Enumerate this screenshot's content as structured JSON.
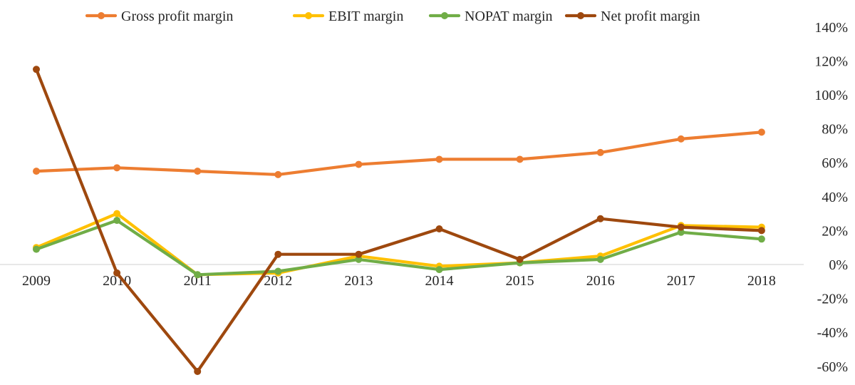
{
  "chart_data": {
    "type": "line",
    "title": "",
    "xlabel": "",
    "ylabel": "",
    "categories": [
      "2009",
      "2010",
      "2011",
      "2012",
      "2013",
      "2014",
      "2015",
      "2016",
      "2017",
      "2018"
    ],
    "ylim": [
      -60,
      140
    ],
    "y_ticks": [
      -60,
      -40,
      -20,
      0,
      20,
      40,
      60,
      80,
      100,
      120,
      140
    ],
    "y_tick_labels": [
      "-60%",
      "-40%",
      "-20%",
      "0%",
      "20%",
      "40%",
      "60%",
      "80%",
      "100%",
      "120%",
      "140%"
    ],
    "y_axis_side": "right",
    "grid": false,
    "legend_position": "top",
    "series": [
      {
        "name": "Gross profit margin",
        "color": "#ED7D31",
        "values": [
          55,
          57,
          55,
          53,
          59,
          62,
          62,
          66,
          74,
          78
        ]
      },
      {
        "name": "EBIT margin",
        "color": "#FFC000",
        "values": [
          10,
          30,
          -6,
          -5,
          5,
          -1,
          1,
          5,
          23,
          22
        ]
      },
      {
        "name": "NOPAT margin",
        "color": "#70AD47",
        "values": [
          9,
          26,
          -6,
          -4,
          3,
          -3,
          1,
          3,
          19,
          15
        ]
      },
      {
        "name": "Net profit margin",
        "color": "#9E480E",
        "values": [
          115,
          -5,
          -63,
          6,
          6,
          21,
          3,
          27,
          22,
          20
        ]
      }
    ]
  }
}
